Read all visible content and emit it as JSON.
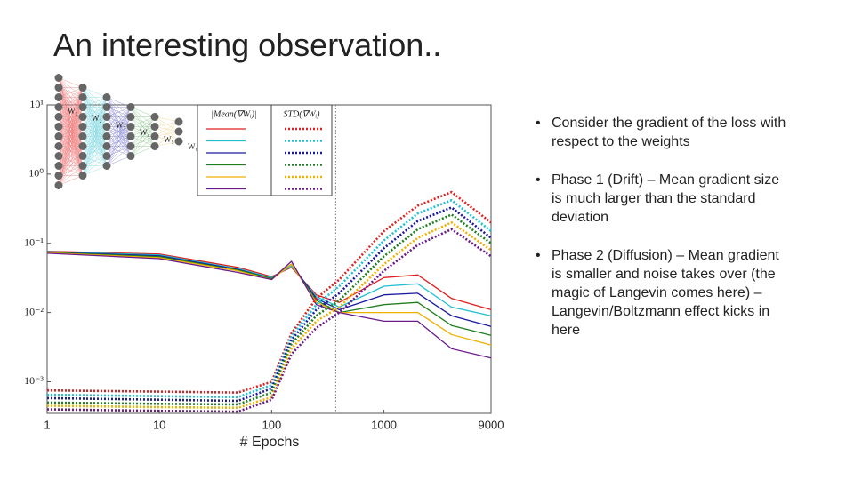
{
  "title": "An interesting observation..",
  "bullets": [
    "Consider the gradient of the loss with respect to the weights",
    "Phase 1 (Drift) – Mean gradient size is much larger than the standard deviation",
    "Phase 2 (Diffusion) – Mean gradient is smaller and noise takes over (the magic of Langevin comes here) – Langevin/Boltzmann effect kicks in here"
  ],
  "network": {
    "labels": [
      "W₁",
      "W₂",
      "W₃",
      "W₄",
      "W₅",
      "W₆"
    ]
  },
  "chart_data": {
    "type": "line",
    "x_label": "# Epochs",
    "legend_columns": [
      "|Mean(∇Wᵢ)|",
      "STD(∇Wᵢ)"
    ],
    "x": [
      1,
      10,
      50,
      100,
      150,
      250,
      400,
      1000,
      2000,
      4000,
      9000
    ],
    "xlim": [
      1,
      9000
    ],
    "xticks": [
      1,
      10,
      100,
      1000,
      9000
    ],
    "x_log": true,
    "ylim": [
      0.00035,
      10
    ],
    "y_log": true,
    "yticks": [
      {
        "value": 0.001,
        "label": "10⁻³"
      },
      {
        "value": 0.01,
        "label": "10⁻²"
      },
      {
        "value": 0.1,
        "label": "10⁻¹"
      },
      {
        "value": 1,
        "label": "10⁰"
      },
      {
        "value": 10,
        "label": "10¹"
      }
    ],
    "vline": 372,
    "series": [
      {
        "color": "#e02020",
        "style": "solid",
        "values": [
          0.077,
          0.07,
          0.045,
          0.033,
          0.045,
          0.018,
          0.014,
          0.032,
          0.035,
          0.016,
          0.011
        ]
      },
      {
        "color": "#20c0d0",
        "style": "solid",
        "values": [
          0.076,
          0.068,
          0.043,
          0.032,
          0.047,
          0.017,
          0.012,
          0.024,
          0.026,
          0.012,
          0.009
        ]
      },
      {
        "color": "#1a1aa0",
        "style": "solid",
        "values": [
          0.075,
          0.066,
          0.042,
          0.031,
          0.05,
          0.016,
          0.011,
          0.018,
          0.019,
          0.009,
          0.0063
        ]
      },
      {
        "color": "#208020",
        "style": "solid",
        "values": [
          0.074,
          0.064,
          0.041,
          0.031,
          0.05,
          0.015,
          0.01,
          0.013,
          0.014,
          0.0065,
          0.0047
        ]
      },
      {
        "color": "#f0b000",
        "style": "solid",
        "values": [
          0.073,
          0.062,
          0.04,
          0.03,
          0.05,
          0.014,
          0.01,
          0.01,
          0.01,
          0.0048,
          0.0034
        ]
      },
      {
        "color": "#6a1a8a",
        "style": "solid",
        "values": [
          0.072,
          0.06,
          0.038,
          0.03,
          0.055,
          0.013,
          0.01,
          0.0075,
          0.0075,
          0.003,
          0.0022
        ]
      },
      {
        "color": "#e02020",
        "style": "dotted",
        "values": [
          0.00075,
          0.00072,
          0.0007,
          0.001,
          0.005,
          0.016,
          0.03,
          0.15,
          0.35,
          0.55,
          0.2
        ]
      },
      {
        "color": "#20c0d0",
        "style": "dotted",
        "values": [
          0.00065,
          0.00062,
          0.0006,
          0.0009,
          0.0045,
          0.013,
          0.024,
          0.11,
          0.27,
          0.42,
          0.15
        ]
      },
      {
        "color": "#1a1aa0",
        "style": "dotted",
        "values": [
          0.00058,
          0.00055,
          0.00053,
          0.0008,
          0.004,
          0.011,
          0.019,
          0.085,
          0.21,
          0.33,
          0.12
        ]
      },
      {
        "color": "#208020",
        "style": "dotted",
        "values": [
          0.0005,
          0.00048,
          0.00047,
          0.0007,
          0.0035,
          0.009,
          0.015,
          0.065,
          0.16,
          0.26,
          0.1
        ]
      },
      {
        "color": "#f0b000",
        "style": "dotted",
        "values": [
          0.00045,
          0.00043,
          0.00042,
          0.0006,
          0.003,
          0.0075,
          0.012,
          0.05,
          0.12,
          0.2,
          0.08
        ]
      },
      {
        "color": "#6a1a8a",
        "style": "dotted",
        "values": [
          0.0004,
          0.00038,
          0.00037,
          0.00055,
          0.0025,
          0.006,
          0.01,
          0.04,
          0.095,
          0.16,
          0.065
        ]
      }
    ]
  }
}
